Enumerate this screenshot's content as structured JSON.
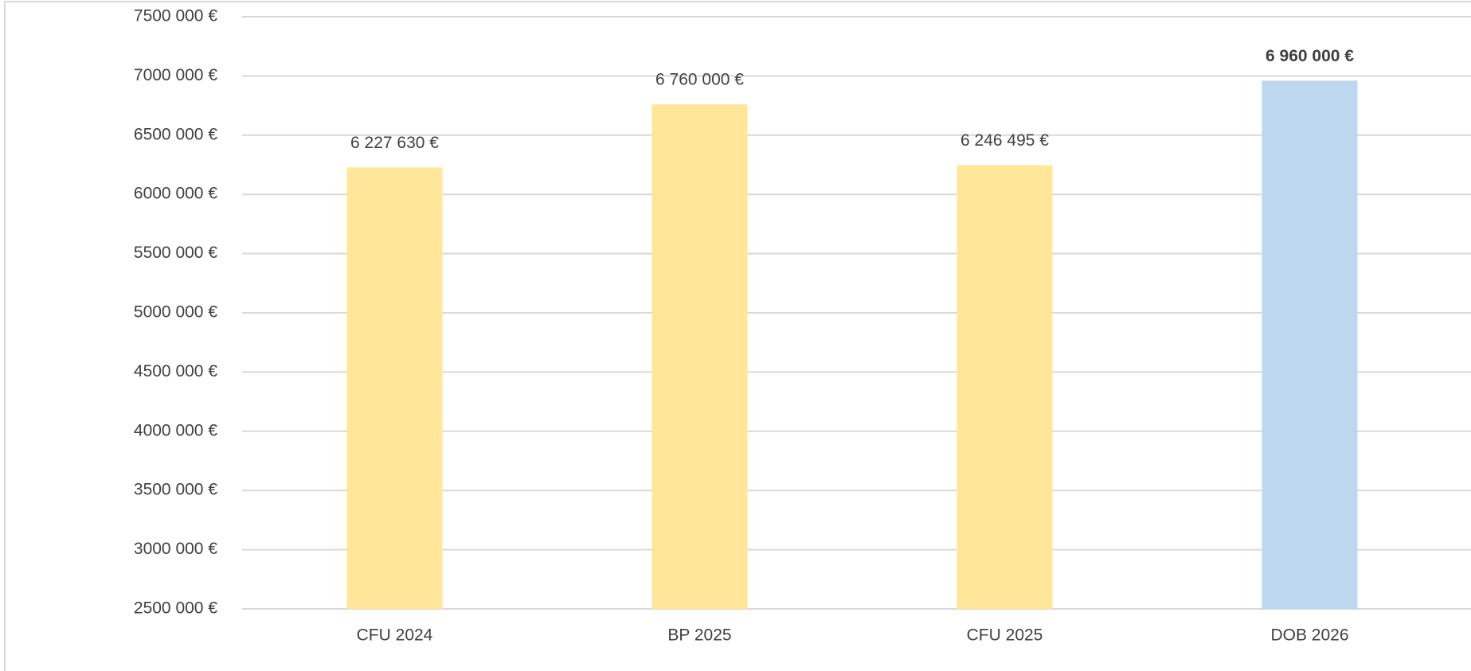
{
  "chart_data": {
    "type": "bar",
    "categories": [
      "CFU 2024",
      "BP 2025",
      "CFU 2025",
      "DOB 2026"
    ],
    "values": [
      6227630,
      6760000,
      6246495,
      6960000
    ],
    "value_labels": [
      "6 227 630 €",
      "6 760 000 €",
      "6 246 495 €",
      "6 960 000 €"
    ],
    "value_label_bold": [
      false,
      false,
      false,
      true
    ],
    "colors": [
      "#ffe699",
      "#ffe699",
      "#ffe699",
      "#bdd7ee"
    ],
    "ylim": [
      2500000,
      7500000
    ],
    "yticks": [
      {
        "value": 2500000,
        "label": "2500 000 €"
      },
      {
        "value": 3000000,
        "label": "3000 000 €"
      },
      {
        "value": 3500000,
        "label": "3500 000 €"
      },
      {
        "value": 4000000,
        "label": "4000 000 €"
      },
      {
        "value": 4500000,
        "label": "4500 000 €"
      },
      {
        "value": 5000000,
        "label": "5000 000 €"
      },
      {
        "value": 5500000,
        "label": "5500 000 €"
      },
      {
        "value": 6000000,
        "label": "6000 000 €"
      },
      {
        "value": 6500000,
        "label": "6500 000 €"
      },
      {
        "value": 7000000,
        "label": "7000 000 €"
      },
      {
        "value": 7500000,
        "label": "7500 000 €"
      }
    ],
    "grid": true
  }
}
